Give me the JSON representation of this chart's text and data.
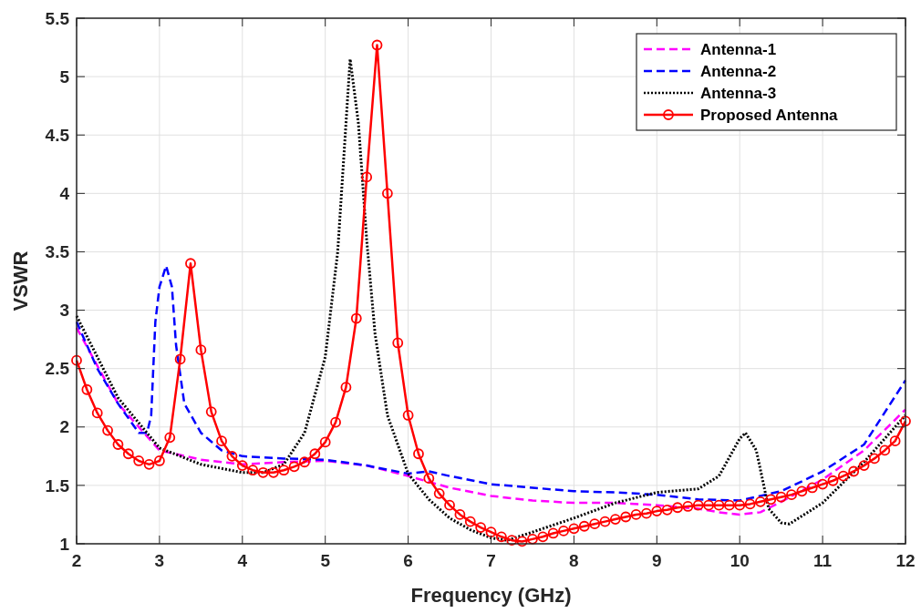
{
  "chart_data": {
    "type": "line",
    "xlabel": "Frequency (GHz)",
    "ylabel": "VSWR",
    "xlim": [
      2,
      12
    ],
    "xticks": [
      2,
      3,
      4,
      5,
      6,
      7,
      8,
      9,
      10,
      11,
      12
    ],
    "ylim": [
      1,
      5.5
    ],
    "yticks": [
      1,
      1.5,
      2,
      2.5,
      3,
      3.5,
      4,
      4.5,
      5,
      5.5
    ],
    "grid": true,
    "legend": "top right",
    "series": [
      {
        "name": "Antenna-1",
        "color": "#ff00ff",
        "line_style": "dashed",
        "marker": "none",
        "x": [
          2,
          2.5,
          3,
          3.5,
          4,
          4.5,
          5,
          5.5,
          6,
          6.5,
          7,
          7.5,
          8,
          8.5,
          9,
          9.5,
          9.75,
          10,
          10.25,
          10.5,
          11,
          11.5,
          12
        ],
        "values": [
          2.85,
          2.2,
          1.8,
          1.72,
          1.68,
          1.7,
          1.71,
          1.67,
          1.58,
          1.48,
          1.41,
          1.37,
          1.35,
          1.35,
          1.33,
          1.3,
          1.27,
          1.25,
          1.27,
          1.36,
          1.55,
          1.8,
          2.15
        ]
      },
      {
        "name": "Antenna-2",
        "color": "#0000ff",
        "line_style": "dashed",
        "marker": "none",
        "x": [
          2,
          2.25,
          2.5,
          2.75,
          2.85,
          2.9,
          2.95,
          3.0,
          3.08,
          3.15,
          3.2,
          3.3,
          3.5,
          3.75,
          4,
          4.5,
          5,
          5.5,
          6,
          6.25,
          6.5,
          7,
          7.5,
          8,
          8.5,
          9,
          9.5,
          10,
          10.5,
          11,
          11.5,
          12
        ],
        "values": [
          2.9,
          2.5,
          2.2,
          1.95,
          1.95,
          2.1,
          2.9,
          3.2,
          3.38,
          3.2,
          2.7,
          2.2,
          1.95,
          1.8,
          1.75,
          1.73,
          1.72,
          1.67,
          1.6,
          1.62,
          1.58,
          1.51,
          1.48,
          1.45,
          1.44,
          1.42,
          1.38,
          1.37,
          1.45,
          1.62,
          1.85,
          2.4
        ]
      },
      {
        "name": "Antenna-3",
        "color": "#000000",
        "line_style": "dotted",
        "marker": "none",
        "x": [
          2,
          2.5,
          3,
          3.5,
          4,
          4.25,
          4.5,
          4.75,
          5,
          5.15,
          5.3,
          5.4,
          5.5,
          5.6,
          5.75,
          6,
          6.25,
          6.5,
          6.75,
          7,
          7.2,
          7.5,
          8,
          8.5,
          9,
          9.5,
          9.75,
          10,
          10.07,
          10.2,
          10.35,
          10.5,
          10.6,
          11,
          11.5,
          12
        ],
        "values": [
          2.95,
          2.25,
          1.82,
          1.68,
          1.61,
          1.61,
          1.68,
          1.95,
          2.6,
          3.5,
          5.15,
          4.6,
          3.6,
          2.8,
          2.1,
          1.6,
          1.38,
          1.22,
          1.12,
          1.05,
          1.03,
          1.1,
          1.22,
          1.35,
          1.44,
          1.47,
          1.58,
          1.9,
          1.95,
          1.8,
          1.3,
          1.18,
          1.17,
          1.35,
          1.7,
          2.1
        ]
      },
      {
        "name": "Proposed Antenna",
        "color": "#ff0000",
        "line_style": "solid",
        "marker": "circle",
        "x": [
          2,
          2.125,
          2.25,
          2.375,
          2.5,
          2.625,
          2.75,
          2.875,
          3,
          3.125,
          3.25,
          3.375,
          3.5,
          3.625,
          3.75,
          3.875,
          4,
          4.125,
          4.25,
          4.375,
          4.5,
          4.625,
          4.75,
          4.875,
          5,
          5.125,
          5.25,
          5.375,
          5.5,
          5.625,
          5.75,
          5.875,
          6,
          6.125,
          6.25,
          6.375,
          6.5,
          6.625,
          6.75,
          6.875,
          7,
          7.125,
          7.25,
          7.375,
          7.5,
          7.625,
          7.75,
          7.875,
          8,
          8.125,
          8.25,
          8.375,
          8.5,
          8.625,
          8.75,
          8.875,
          9,
          9.125,
          9.25,
          9.375,
          9.5,
          9.625,
          9.75,
          9.875,
          10,
          10.125,
          10.25,
          10.375,
          10.5,
          10.625,
          10.75,
          10.875,
          11,
          11.125,
          11.25,
          11.375,
          11.5,
          11.625,
          11.75,
          11.875,
          12
        ],
        "values": [
          2.57,
          2.32,
          2.12,
          1.97,
          1.85,
          1.77,
          1.71,
          1.68,
          1.71,
          1.91,
          2.58,
          3.4,
          2.66,
          2.13,
          1.88,
          1.75,
          1.67,
          1.63,
          1.61,
          1.61,
          1.63,
          1.66,
          1.7,
          1.77,
          1.87,
          2.04,
          2.34,
          2.93,
          4.14,
          5.27,
          4.0,
          2.72,
          2.1,
          1.77,
          1.56,
          1.43,
          1.33,
          1.25,
          1.19,
          1.14,
          1.1,
          1.06,
          1.03,
          1.02,
          1.04,
          1.06,
          1.09,
          1.11,
          1.13,
          1.15,
          1.17,
          1.19,
          1.21,
          1.23,
          1.25,
          1.26,
          1.28,
          1.29,
          1.31,
          1.32,
          1.33,
          1.33,
          1.33,
          1.33,
          1.33,
          1.34,
          1.36,
          1.38,
          1.4,
          1.42,
          1.45,
          1.48,
          1.51,
          1.54,
          1.58,
          1.62,
          1.67,
          1.73,
          1.8,
          1.88,
          2.05
        ]
      }
    ]
  }
}
